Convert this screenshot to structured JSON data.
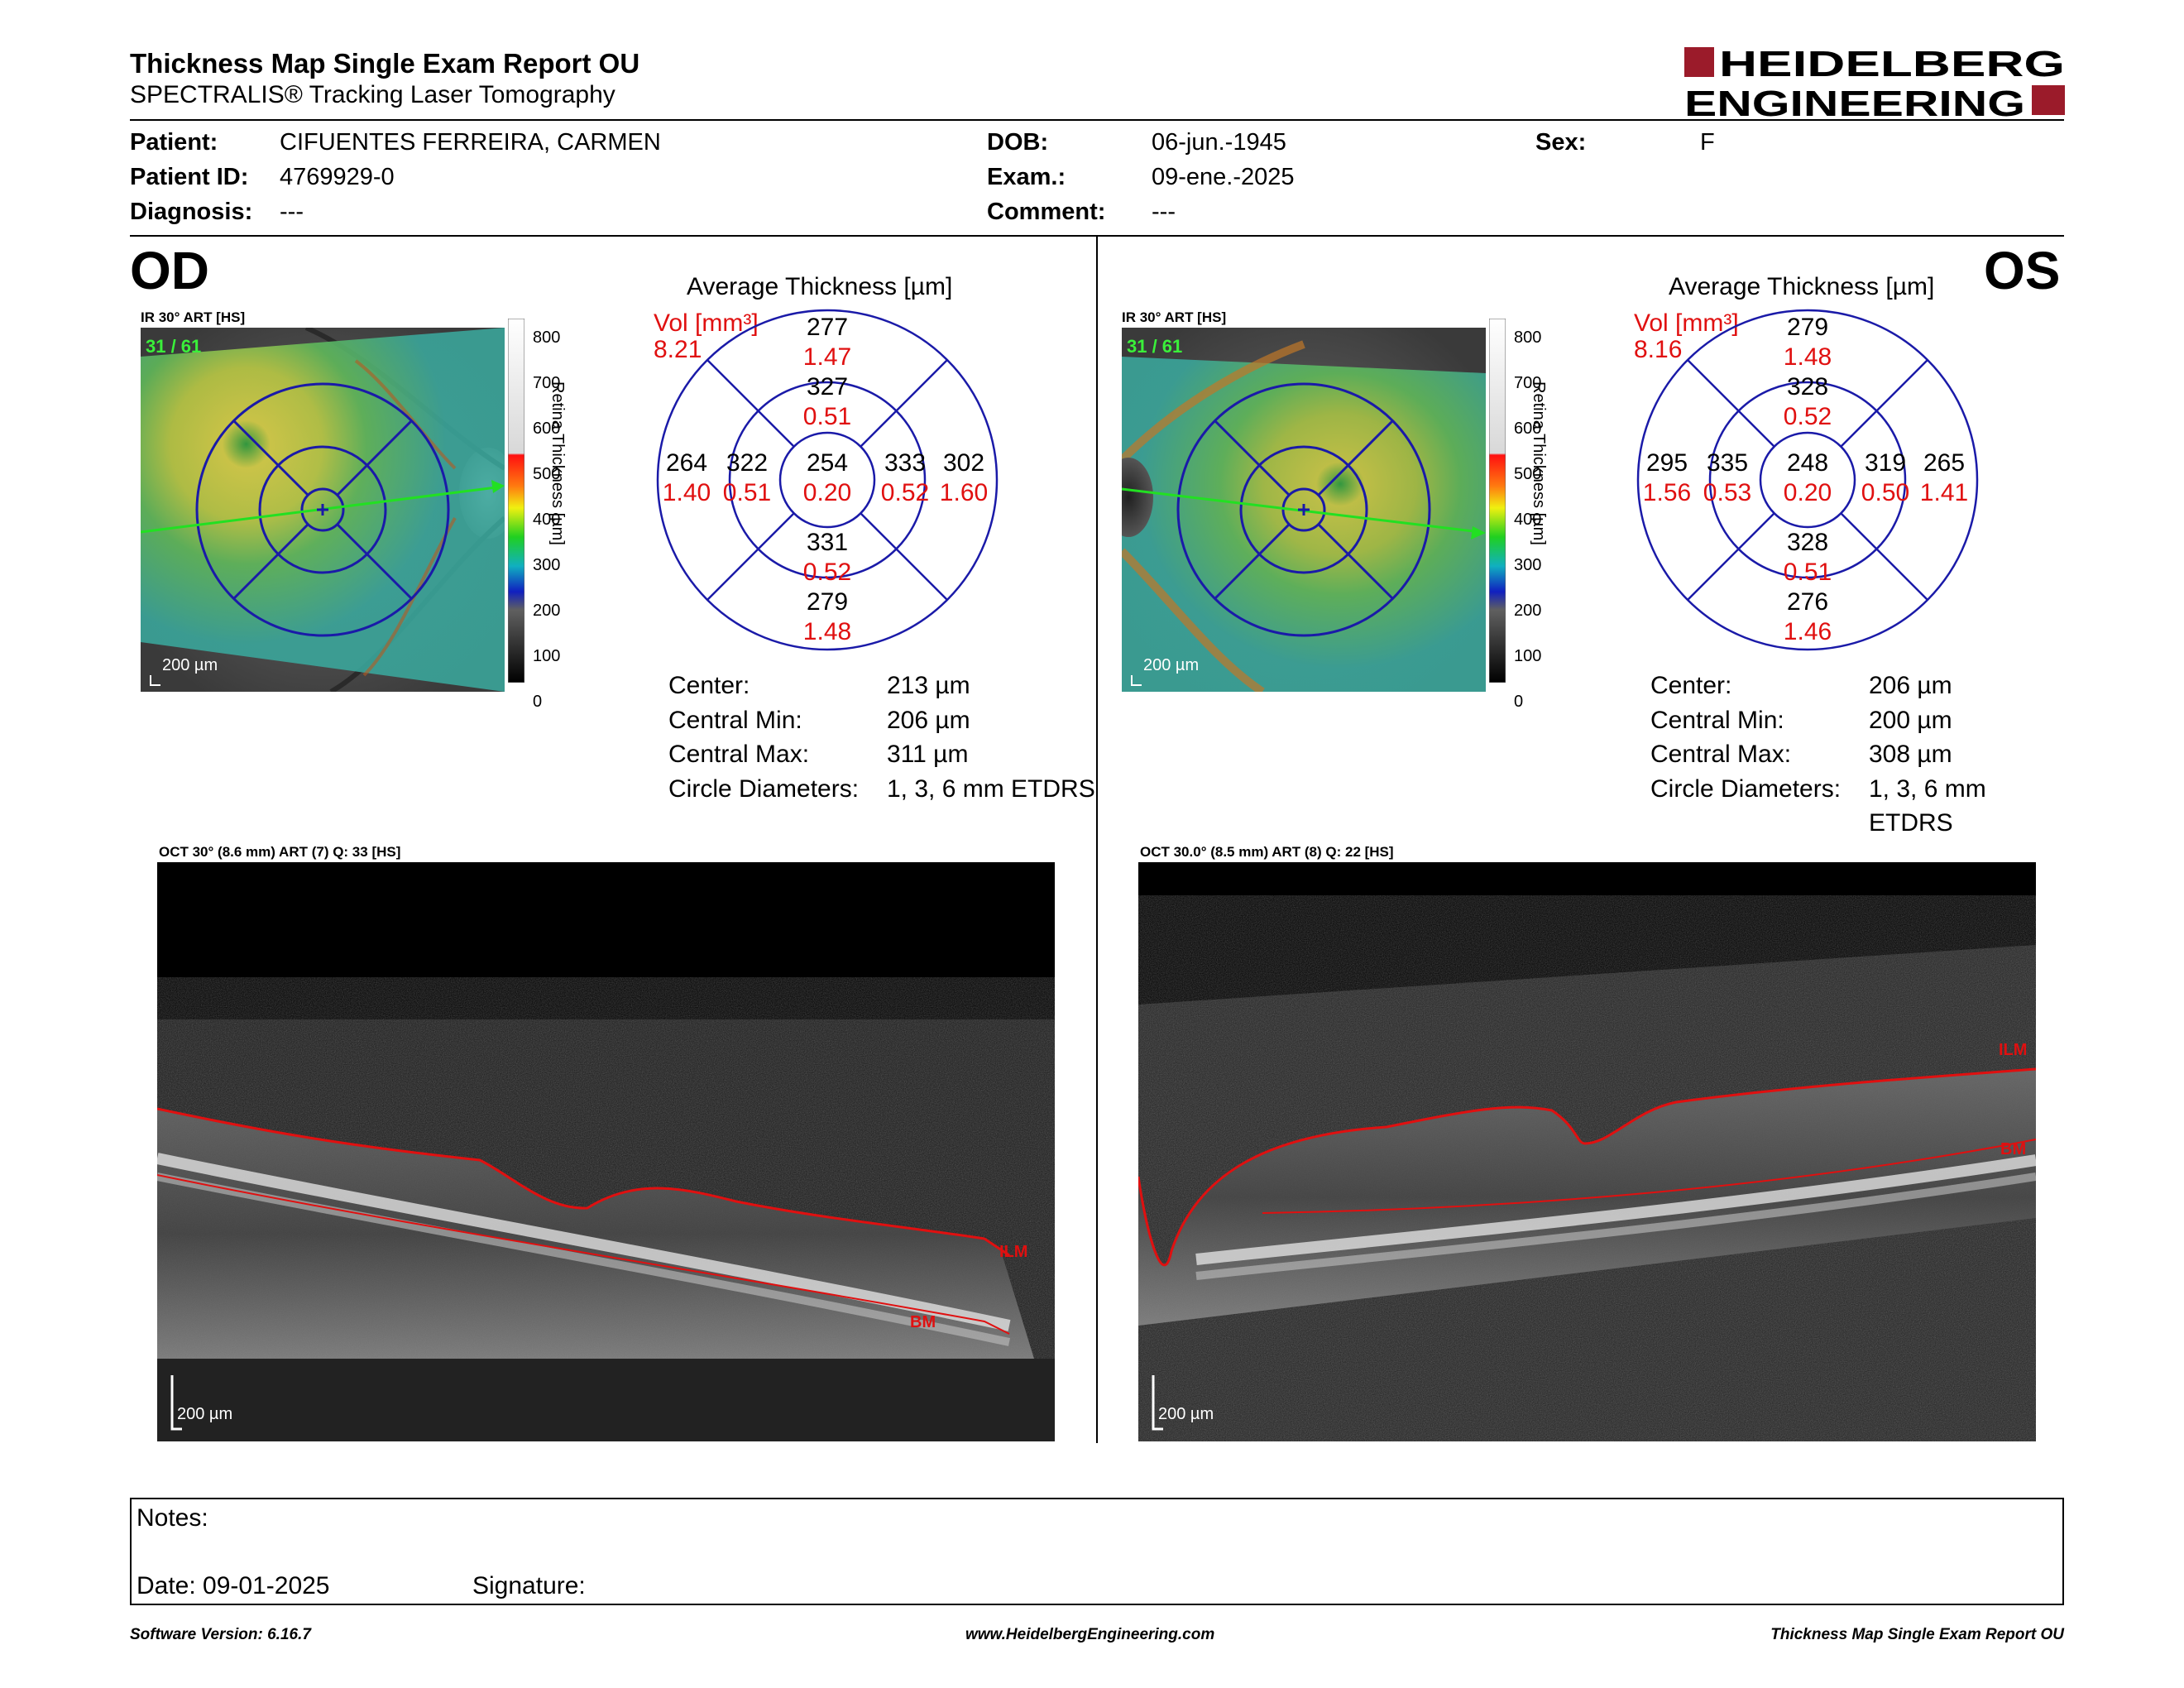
{
  "header": {
    "title": "Thickness Map Single Exam Report OU",
    "subtitle": "SPECTRALIS® Tracking Laser Tomography",
    "logo_line1": "HEIDELBERG",
    "logo_line2": "ENGINEERING"
  },
  "patient": {
    "patient_label": "Patient:",
    "patient_value": "CIFUENTES FERREIRA, CARMEN",
    "id_label": "Patient ID:",
    "id_value": "4769929-0",
    "diagnosis_label": "Diagnosis:",
    "diagnosis_value": "---",
    "dob_label": "DOB:",
    "dob_value": "06-jun.-1945",
    "exam_label": "Exam.:",
    "exam_value": "09-ene.-2025",
    "comment_label": "Comment:",
    "comment_value": "---",
    "sex_label": "Sex:",
    "sex_value": "F"
  },
  "colorscale": {
    "ticks": [
      "800",
      "700",
      "600",
      "500",
      "400",
      "300",
      "200",
      "100",
      "0"
    ],
    "axis_label": "Retina  Thickness [µm]"
  },
  "od": {
    "eye_label": "OD",
    "fundus_label": "IR 30° ART [HS]",
    "fundus_counter": "31 / 61",
    "fundus_scale": "200 µm",
    "avg_title": "Average Thickness [µm]",
    "vol_label": "Vol [mm³]",
    "vol_value": "8.21",
    "sectors": {
      "outer_sup": {
        "t": "277",
        "v": "1.47"
      },
      "inner_sup": {
        "t": "327",
        "v": "0.51"
      },
      "outer_temp": {
        "t": "264",
        "v": "1.40"
      },
      "inner_temp": {
        "t": "322",
        "v": "0.51"
      },
      "center": {
        "t": "254",
        "v": "0.20"
      },
      "inner_nas": {
        "t": "333",
        "v": "0.52"
      },
      "outer_nas": {
        "t": "302",
        "v": "1.60"
      },
      "inner_inf": {
        "t": "331",
        "v": "0.52"
      },
      "outer_inf": {
        "t": "279",
        "v": "1.48"
      }
    },
    "stats": [
      {
        "label": "Center:",
        "value": "213 µm"
      },
      {
        "label": "Central Min:",
        "value": "206 µm"
      },
      {
        "label": "Central Max:",
        "value": "311 µm"
      },
      {
        "label": "Circle Diameters:",
        "value": "1, 3, 6 mm ETDRS"
      }
    ],
    "oct_label": "OCT 30° (8.6 mm) ART (7) Q: 33 [HS]",
    "oct_scale": "200 µm",
    "ilm": "ILM",
    "bm": "BM"
  },
  "os": {
    "eye_label": "OS",
    "fundus_label": "IR 30° ART [HS]",
    "fundus_counter": "31 / 61",
    "fundus_scale": "200 µm",
    "avg_title": "Average Thickness [µm]",
    "vol_label": "Vol [mm³]",
    "vol_value": "8.16",
    "sectors": {
      "outer_sup": {
        "t": "279",
        "v": "1.48"
      },
      "inner_sup": {
        "t": "328",
        "v": "0.52"
      },
      "outer_temp": {
        "t": "265",
        "v": "1.41"
      },
      "inner_temp": {
        "t": "319",
        "v": "0.50"
      },
      "center": {
        "t": "248",
        "v": "0.20"
      },
      "inner_nas": {
        "t": "335",
        "v": "0.53"
      },
      "outer_nas": {
        "t": "295",
        "v": "1.56"
      },
      "inner_inf": {
        "t": "328",
        "v": "0.51"
      },
      "outer_inf": {
        "t": "276",
        "v": "1.46"
      }
    },
    "stats": [
      {
        "label": "Center:",
        "value": "206 µm"
      },
      {
        "label": "Central Min:",
        "value": "200 µm"
      },
      {
        "label": "Central Max:",
        "value": "308 µm"
      },
      {
        "label": "Circle Diameters:",
        "value": "1, 3, 6 mm ETDRS"
      }
    ],
    "oct_label": "OCT 30.0° (8.5 mm) ART (8) Q: 22 [HS]",
    "oct_scale": "200 µm",
    "ilm": "ILM",
    "bm": "BM"
  },
  "notes": {
    "notes_label": "Notes:",
    "date_label": "Date: 09-01-2025",
    "signature_label": "Signature:"
  },
  "footer": {
    "left": "Software Version: 6.16.7",
    "center": "www.HeidelbergEngineering.com",
    "right": "Thickness Map Single Exam Report OU"
  },
  "colors": {
    "ring_blue": "#1a1aa8",
    "value_red": "#e01010",
    "logo_red": "#9b1b2a"
  }
}
